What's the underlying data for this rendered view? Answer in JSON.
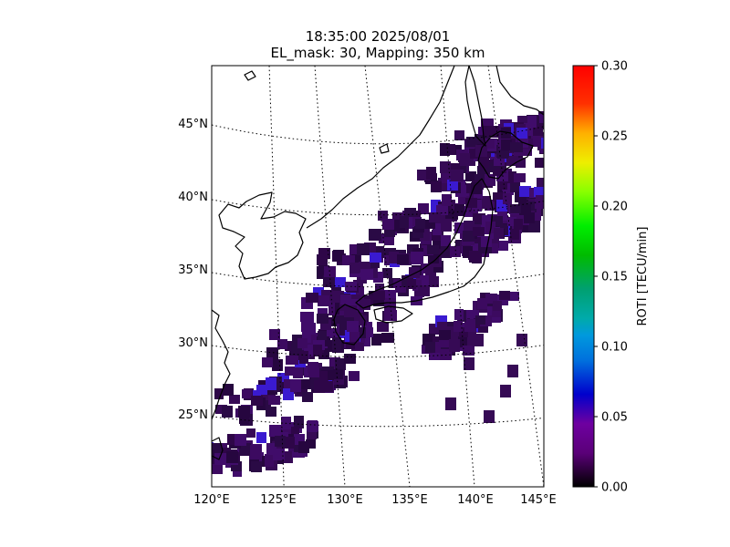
{
  "title": {
    "line1": "18:35:00 2025/08/01",
    "line2": "EL_mask: 30, Mapping: 350 km"
  },
  "map": {
    "lon_labels": [
      "120°E",
      "125°E",
      "130°E",
      "135°E",
      "140°E",
      "145°E"
    ],
    "lat_labels": [
      "45°N",
      "40°N",
      "35°N",
      "30°N",
      "25°N"
    ],
    "grid_style": "dotted",
    "coastline_color": "#000000",
    "cell_colors": [
      "#26063f",
      "#2e0648",
      "#360a55",
      "#3c0a60",
      "#2a0a45",
      "#400c6a"
    ]
  },
  "colorbar": {
    "label": "ROTI [TECU/min]",
    "ticks": [
      "0.00",
      "0.05",
      "0.10",
      "0.15",
      "0.20",
      "0.25",
      "0.30"
    ],
    "colormap": "nipy_spectral",
    "range": [
      0.0,
      0.3
    ]
  },
  "chart_data": {
    "type": "heatmap",
    "title": "18:35:00 2025/08/01\nEL_mask: 30, Mapping: 350 km",
    "x_range": [
      120,
      145
    ],
    "y_range": [
      20,
      49
    ],
    "colorbar_label": "ROTI [TECU/min]",
    "colorbar_range": [
      0.0,
      0.3
    ],
    "typical_value": 0.03,
    "max_observed": 0.06
  }
}
